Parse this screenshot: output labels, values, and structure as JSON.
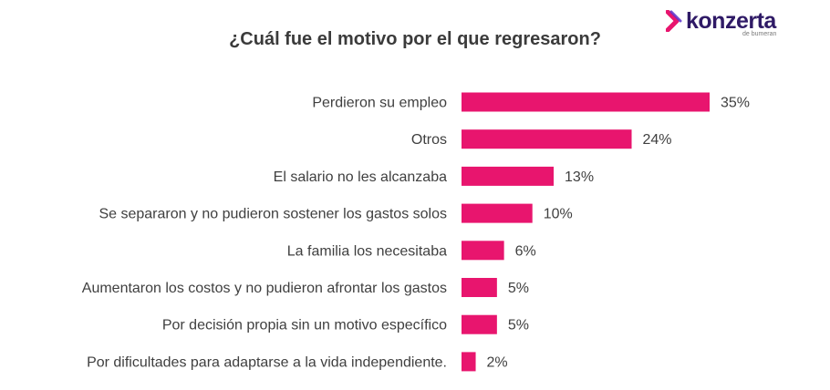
{
  "logo": {
    "brand": "konzerta",
    "tagline": "de bumeran"
  },
  "colors": {
    "bar": "#e8156e",
    "logo_pink": "#e8156e",
    "logo_purple": "#5b2fc9"
  },
  "chart_data": {
    "type": "bar",
    "orientation": "horizontal",
    "title": "¿Cuál fue el motivo por el que regresaron?",
    "xlabel": "",
    "ylabel": "",
    "grid": false,
    "xlim": [
      0,
      35
    ],
    "categories": [
      "Perdieron su empleo",
      "Otros",
      "El salario no les alcanzaba",
      "Se separaron y no pudieron sostener los gastos solos",
      "La familia los necesitaba",
      "Aumentaron los costos y no pudieron afrontar los gastos",
      "Por decisión propia sin un motivo específico",
      "Por dificultades para adaptarse a la vida independiente."
    ],
    "values": [
      35,
      24,
      13,
      10,
      6,
      5,
      5,
      2
    ],
    "value_labels": [
      "35%",
      "24%",
      "13%",
      "10%",
      "6%",
      "5%",
      "5%",
      "2%"
    ]
  }
}
